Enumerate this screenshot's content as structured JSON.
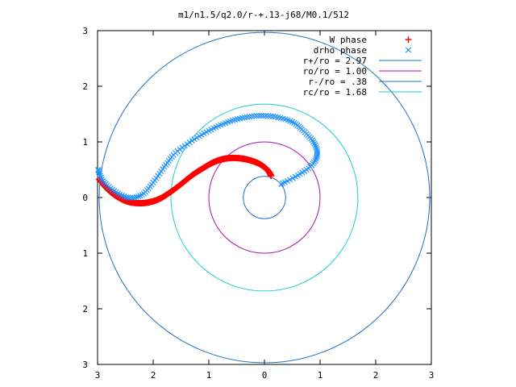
{
  "chart_data": {
    "type": "scatter",
    "title": "m1/n1.5/q2.0/r-+.13-j68/M0.1/512",
    "xlabel": "",
    "ylabel": "",
    "xlim": [
      -3,
      3
    ],
    "ylim": [
      -3,
      3
    ],
    "xticks": [
      {
        "value": -3,
        "label": "3"
      },
      {
        "value": -2,
        "label": "2"
      },
      {
        "value": -1,
        "label": "1"
      },
      {
        "value": 0,
        "label": "0"
      },
      {
        "value": 1,
        "label": "1"
      },
      {
        "value": 2,
        "label": "2"
      },
      {
        "value": 3,
        "label": "3"
      }
    ],
    "yticks": [
      {
        "value": 3,
        "label": "3"
      },
      {
        "value": 2,
        "label": "2"
      },
      {
        "value": 1,
        "label": "1"
      },
      {
        "value": 0,
        "label": "0"
      },
      {
        "value": -1,
        "label": "1"
      },
      {
        "value": -2,
        "label": "2"
      },
      {
        "value": -3,
        "label": "3"
      }
    ],
    "grid": false,
    "legend_position": "top-right",
    "series": [
      {
        "name": "W phase",
        "kind": "points",
        "marker": "+",
        "color": "#ff0000",
        "x": [
          0.12,
          0.05,
          -0.1,
          -0.3,
          -0.5,
          -0.7,
          -0.9,
          -1.1,
          -1.3,
          -1.5,
          -1.7,
          -1.9,
          -2.1,
          -2.3,
          -2.5,
          -2.7,
          -2.85,
          -2.97
        ],
        "y": [
          0.39,
          0.5,
          0.61,
          0.68,
          0.71,
          0.7,
          0.64,
          0.53,
          0.4,
          0.24,
          0.09,
          -0.03,
          -0.09,
          -0.1,
          -0.06,
          0.05,
          0.18,
          0.33
        ]
      },
      {
        "name": "drho phase",
        "kind": "points",
        "marker": "x",
        "color": "#1e90ff",
        "x": [
          0.3,
          0.6,
          0.85,
          0.95,
          0.88,
          0.7,
          0.5,
          0.2,
          -0.1,
          -0.4,
          -0.7,
          -1.0,
          -1.3,
          -1.6,
          -1.8,
          -2.0,
          -2.2,
          -2.45,
          -2.7,
          -2.9,
          -2.99
        ],
        "y": [
          0.24,
          0.4,
          0.58,
          0.78,
          1.0,
          1.2,
          1.36,
          1.45,
          1.47,
          1.43,
          1.34,
          1.2,
          1.02,
          0.8,
          0.55,
          0.27,
          0.05,
          0.0,
          0.12,
          0.3,
          0.5
        ]
      },
      {
        "name": "r+/ro = 2.97",
        "kind": "circle",
        "radius": 2.97,
        "color": "#1f6fbf"
      },
      {
        "name": "ro/ro = 1.00",
        "kind": "circle",
        "radius": 1.0,
        "color": "#aa11aa"
      },
      {
        "name": "r-/ro = .38",
        "kind": "circle",
        "radius": 0.38,
        "color": "#1f6fbf"
      },
      {
        "name": "rc/ro = 1.68",
        "kind": "circle",
        "radius": 1.68,
        "color": "#1ad0d0"
      }
    ]
  }
}
